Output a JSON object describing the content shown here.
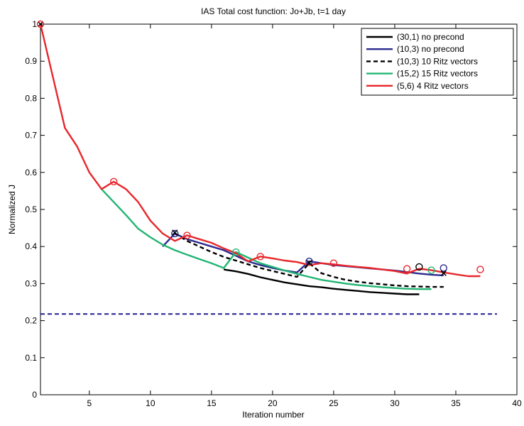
{
  "chart_data": {
    "type": "line",
    "title": "IAS Total cost function: Jo+Jb, t=1 day",
    "xlabel": "Iteration number",
    "ylabel": "Normalized J",
    "xlim": [
      1,
      40
    ],
    "ylim": [
      0,
      1
    ],
    "xticks": [
      5,
      10,
      15,
      20,
      25,
      30,
      35,
      40
    ],
    "yticks": [
      0,
      0.1,
      0.2,
      0.3,
      0.4,
      0.5,
      0.6,
      0.7,
      0.8,
      0.9,
      1
    ],
    "xtick_labels": [
      "5",
      "10",
      "15",
      "20",
      "25",
      "30",
      "35",
      "40"
    ],
    "ytick_labels": [
      "0",
      "0.1",
      "0.2",
      "0.3",
      "0.4",
      "0.5",
      "0.6",
      "0.7",
      "0.8",
      "0.9",
      "1"
    ],
    "grid": false,
    "legend_position": "top-right",
    "reference_line": {
      "y": 0.218,
      "color": "#1f1f8f",
      "dash": "dashed"
    },
    "series": [
      {
        "name": "(30,1) no precond",
        "color": "#000000",
        "dash": "solid",
        "x": [
          16,
          17,
          18,
          19,
          20,
          21,
          22,
          23,
          24,
          25,
          26,
          27,
          28,
          29,
          30,
          31,
          32
        ],
        "y": [
          0.338,
          0.333,
          0.326,
          0.317,
          0.31,
          0.303,
          0.298,
          0.293,
          0.29,
          0.286,
          0.283,
          0.28,
          0.277,
          0.275,
          0.273,
          0.271,
          0.271
        ],
        "markers": [
          {
            "x": 32,
            "y": 0.345,
            "symbol": "o"
          }
        ]
      },
      {
        "name": "(10,3) no precond",
        "color": "#2b2b8f",
        "dash": "solid",
        "x": [
          11,
          12,
          13,
          14,
          15,
          16,
          17,
          18,
          19,
          20,
          21,
          22,
          23,
          24,
          25,
          26,
          27,
          28,
          29,
          30,
          31,
          32,
          33,
          34
        ],
        "y": [
          0.4,
          0.435,
          0.42,
          0.41,
          0.4,
          0.39,
          0.375,
          0.36,
          0.35,
          0.342,
          0.335,
          0.33,
          0.36,
          0.355,
          0.35,
          0.347,
          0.344,
          0.341,
          0.338,
          0.335,
          0.331,
          0.327,
          0.324,
          0.322
        ],
        "markers": [
          {
            "x": 12,
            "y": 0.435,
            "symbol": "o"
          },
          {
            "x": 23,
            "y": 0.36,
            "symbol": "o"
          },
          {
            "x": 34,
            "y": 0.342,
            "symbol": "o"
          }
        ]
      },
      {
        "name": "(10,3) 10 Ritz vectors",
        "color": "#000000",
        "dash": "dashed",
        "x": [
          12,
          13,
          14,
          15,
          16,
          17,
          18,
          19,
          20,
          21,
          22,
          23,
          24,
          25,
          26,
          27,
          28,
          29,
          30,
          31,
          32,
          33,
          34
        ],
        "y": [
          0.435,
          0.415,
          0.4,
          0.385,
          0.372,
          0.362,
          0.352,
          0.342,
          0.334,
          0.326,
          0.318,
          0.355,
          0.328,
          0.318,
          0.31,
          0.305,
          0.301,
          0.298,
          0.295,
          0.293,
          0.292,
          0.291,
          0.291
        ],
        "markers": [
          {
            "x": 1,
            "y": 1.0,
            "symbol": "x"
          },
          {
            "x": 12,
            "y": 0.438,
            "symbol": "x"
          },
          {
            "x": 23,
            "y": 0.356,
            "symbol": "x"
          },
          {
            "x": 34,
            "y": 0.328,
            "symbol": "x"
          }
        ]
      },
      {
        "name": "(15,2) 15 Ritz vectors",
        "color": "#22b573",
        "dash": "solid",
        "x": [
          6,
          7,
          8,
          9,
          10,
          11,
          12,
          13,
          14,
          15,
          16,
          17,
          18,
          19,
          20,
          21,
          22,
          23,
          24,
          25,
          26,
          27,
          28,
          29,
          30,
          31,
          32,
          33
        ],
        "y": [
          0.555,
          0.52,
          0.485,
          0.448,
          0.425,
          0.405,
          0.39,
          0.378,
          0.366,
          0.355,
          0.342,
          0.385,
          0.37,
          0.355,
          0.345,
          0.335,
          0.326,
          0.318,
          0.31,
          0.305,
          0.3,
          0.296,
          0.293,
          0.29,
          0.288,
          0.286,
          0.285,
          0.285
        ],
        "markers": [
          {
            "x": 17,
            "y": 0.385,
            "symbol": "o"
          },
          {
            "x": 33,
            "y": 0.336,
            "symbol": "o"
          }
        ]
      },
      {
        "name": "(5,6) 4 Ritz vectors",
        "color": "#e8262b",
        "dash": "solid",
        "x": [
          1,
          2,
          3,
          4,
          5,
          6,
          7,
          8,
          9,
          10,
          11,
          12,
          13,
          14,
          15,
          16,
          17,
          18,
          19,
          20,
          21,
          22,
          23,
          24,
          25,
          26,
          27,
          28,
          29,
          30,
          31,
          32,
          33,
          34,
          35,
          36,
          37
        ],
        "y": [
          1.0,
          0.86,
          0.72,
          0.67,
          0.6,
          0.555,
          0.575,
          0.555,
          0.52,
          0.47,
          0.435,
          0.415,
          0.43,
          0.42,
          0.41,
          0.395,
          0.382,
          0.36,
          0.373,
          0.368,
          0.362,
          0.358,
          0.35,
          0.355,
          0.352,
          0.348,
          0.345,
          0.342,
          0.338,
          0.334,
          0.327,
          0.34,
          0.336,
          0.33,
          0.325,
          0.32,
          0.32
        ],
        "markers": [
          {
            "x": 1,
            "y": 1.0,
            "symbol": "o"
          },
          {
            "x": 7,
            "y": 0.575,
            "symbol": "o"
          },
          {
            "x": 13,
            "y": 0.43,
            "symbol": "o"
          },
          {
            "x": 19,
            "y": 0.373,
            "symbol": "o"
          },
          {
            "x": 25,
            "y": 0.355,
            "symbol": "o"
          },
          {
            "x": 31,
            "y": 0.34,
            "symbol": "o"
          },
          {
            "x": 37,
            "y": 0.338,
            "symbol": "o"
          }
        ]
      }
    ]
  }
}
